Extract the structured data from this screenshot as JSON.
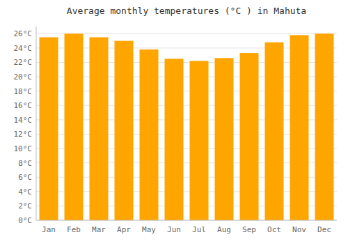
{
  "chart_data": {
    "type": "bar",
    "title": "Average monthly temperatures (°C ) in Mahuta",
    "categories": [
      "Jan",
      "Feb",
      "Mar",
      "Apr",
      "May",
      "Jun",
      "Jul",
      "Aug",
      "Sep",
      "Oct",
      "Nov",
      "Dec"
    ],
    "values": [
      25.5,
      26.0,
      25.5,
      25.0,
      23.8,
      22.5,
      22.2,
      22.6,
      23.3,
      24.8,
      25.8,
      26.0
    ],
    "color": "#FFA500",
    "ylim": [
      0,
      27
    ],
    "yticks": [
      {
        "value": 0,
        "label": "0°C"
      },
      {
        "value": 2,
        "label": "2°C"
      },
      {
        "value": 4,
        "label": "4°C"
      },
      {
        "value": 6,
        "label": "6°C"
      },
      {
        "value": 8,
        "label": "8°C"
      },
      {
        "value": 10,
        "label": "10°C"
      },
      {
        "value": 12,
        "label": "12°C"
      },
      {
        "value": 14,
        "label": "14°C"
      },
      {
        "value": 16,
        "label": "16°C"
      },
      {
        "value": 18,
        "label": "18°C"
      },
      {
        "value": 20,
        "label": "20°C"
      },
      {
        "value": 22,
        "label": "22°C"
      },
      {
        "value": 24,
        "label": "24°C"
      },
      {
        "value": 26,
        "label": "26°C"
      }
    ],
    "grid": true
  }
}
